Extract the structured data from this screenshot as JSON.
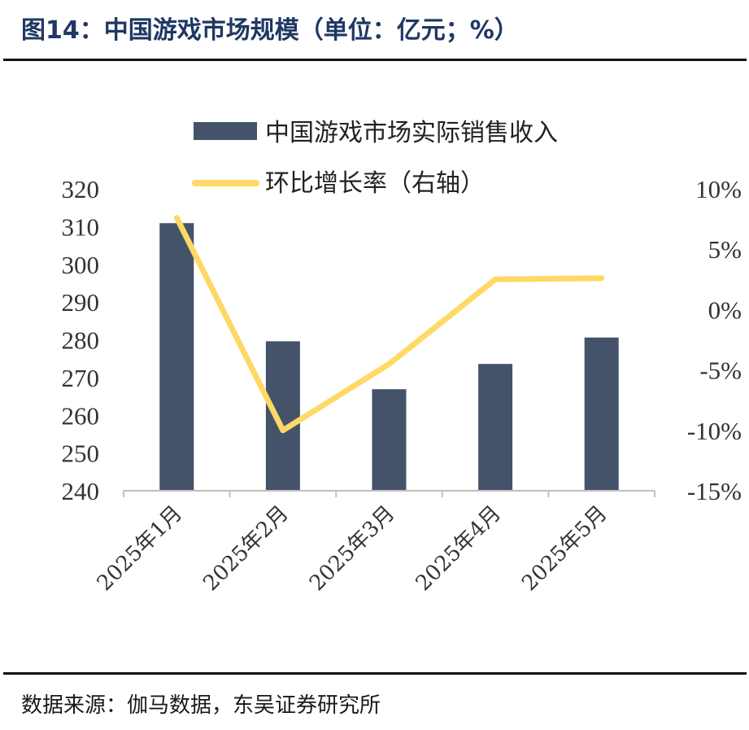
{
  "header": {
    "title": "图14：中国游戏市场规模（单位：亿元；%）"
  },
  "footer": {
    "source": "数据来源：伽马数据，东吴证券研究所"
  },
  "colors": {
    "bar": "#44536a",
    "line": "#ffd966",
    "axis": "#bfbfbf",
    "title": "#1f3864"
  },
  "chart_data": {
    "type": "bar",
    "categories": [
      "2025年1月",
      "2025年2月",
      "2025年3月",
      "2025年4月",
      "2025年5月"
    ],
    "series": [
      {
        "name": "中国游戏市场实际销售收入",
        "type": "bar",
        "axis": "left",
        "values": [
          310.9,
          279.6,
          266.9,
          273.6,
          280.6
        ]
      },
      {
        "name": "环比增长率（右轴）",
        "type": "line",
        "axis": "right",
        "values": [
          7.6,
          -10.0,
          -4.5,
          2.5,
          2.6
        ]
      }
    ],
    "y_left": {
      "min": 240,
      "max": 320,
      "step": 10,
      "ticks": [
        "240",
        "250",
        "260",
        "270",
        "280",
        "290",
        "300",
        "310",
        "320"
      ]
    },
    "y_right": {
      "min": -15,
      "max": 10,
      "step": 5,
      "ticks": [
        "-15%",
        "-10%",
        "-5%",
        "0%",
        "5%",
        "10%"
      ]
    },
    "legend": "top",
    "grid": false
  }
}
